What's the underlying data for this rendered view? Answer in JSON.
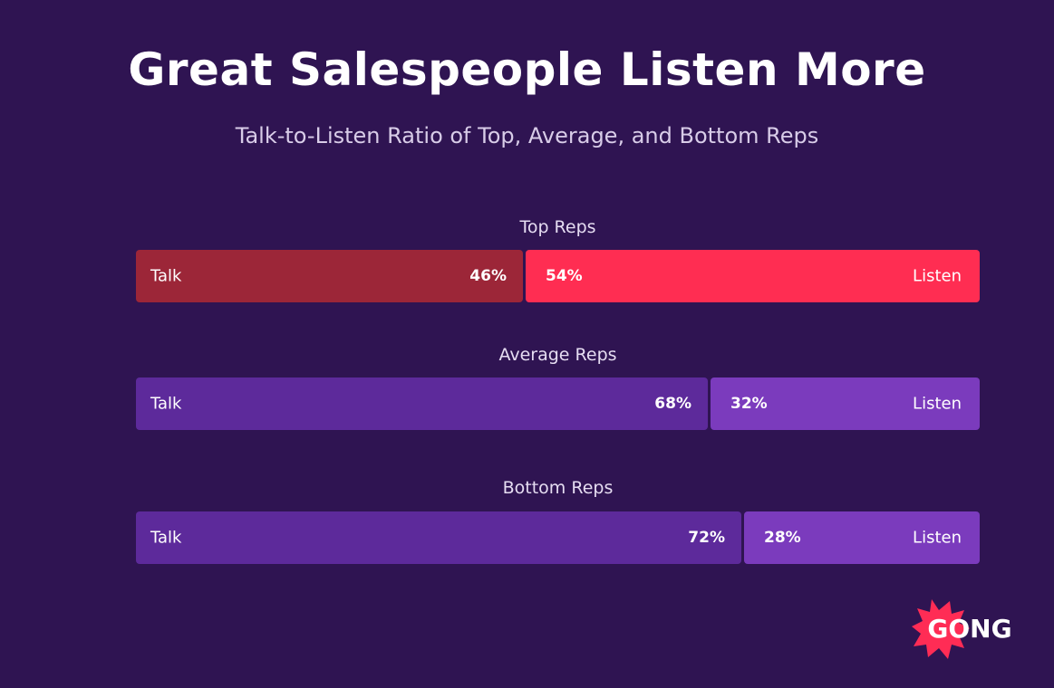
{
  "title": "Great Salespeople Listen More",
  "subtitle": "Talk-to-Listen Ratio of Top, Average, and Bottom Reps",
  "logo": {
    "text": "GONG",
    "color": "#ff2c55"
  },
  "colors": {
    "background": "#2f1452",
    "top_talk": "#9c2638",
    "top_listen": "#ff2d52",
    "avg_talk": "#5d2a9b",
    "avg_listen": "#7b3bbd"
  },
  "chart_data": {
    "type": "bar",
    "orientation": "horizontal-stacked-100",
    "categories": [
      "Top Reps",
      "Average Reps",
      "Bottom Reps"
    ],
    "series": [
      {
        "name": "Talk",
        "values": [
          46,
          68,
          72
        ]
      },
      {
        "name": "Listen",
        "values": [
          54,
          32,
          28
        ]
      }
    ],
    "value_suffix": "%",
    "title": "Great Salespeople Listen More",
    "subtitle": "Talk-to-Listen Ratio of Top, Average, and Bottom Reps",
    "xlim": [
      0,
      100
    ],
    "grid": false,
    "legend": "none"
  }
}
